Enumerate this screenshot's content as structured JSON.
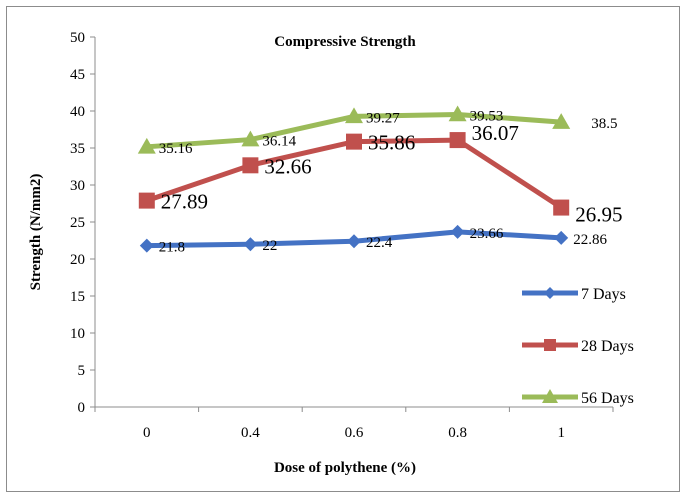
{
  "chart_data": {
    "type": "line",
    "title": "Compressive Strength",
    "xlabel": "Dose of polythene (%)",
    "ylabel": "Strength (N/mm2)",
    "categories": [
      "0",
      "0.4",
      "0.6",
      "0.8",
      "1"
    ],
    "ylim": [
      0,
      50
    ],
    "yticks": [
      "0",
      "5",
      "10",
      "15",
      "20",
      "25",
      "30",
      "35",
      "40",
      "45",
      "50"
    ],
    "grid": false,
    "legend": "right",
    "series": [
      {
        "name": "7 Days",
        "values": [
          21.8,
          22,
          22.4,
          23.66,
          22.86
        ],
        "labels": [
          "21.8",
          "22",
          "22.4",
          "23.66",
          "22.86"
        ],
        "color": "#4472c4",
        "marker": "diamond"
      },
      {
        "name": "28 Days",
        "values": [
          27.89,
          32.66,
          35.86,
          36.07,
          26.95
        ],
        "labels": [
          "27.89",
          "32.66",
          "35.86",
          "36.07",
          "26.95"
        ],
        "color": "#c0504d",
        "marker": "square"
      },
      {
        "name": "56 Days",
        "values": [
          35.16,
          36.14,
          39.27,
          39.53,
          38.5
        ],
        "labels": [
          "35.16",
          "36.14",
          "39.27",
          "39.53",
          "38.5"
        ],
        "color": "#9bbb59",
        "marker": "triangle"
      }
    ]
  }
}
